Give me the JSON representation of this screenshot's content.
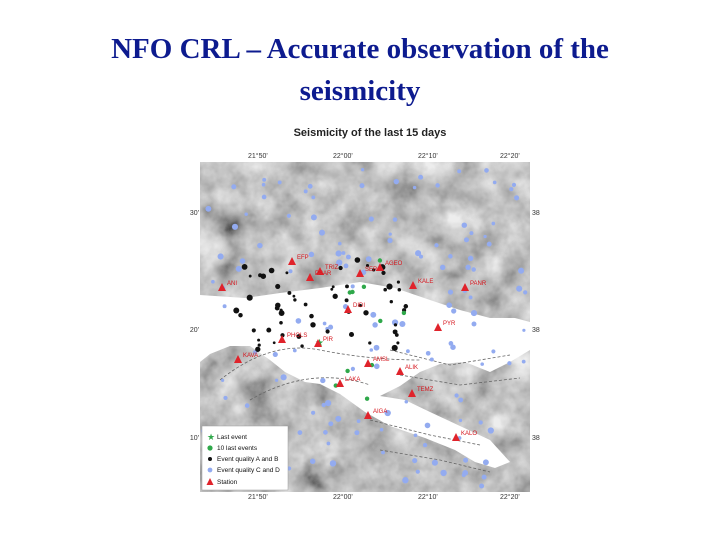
{
  "slide": {
    "title_line1": "NFO CRL – Accurate observation of the",
    "title_line2": "seismicity"
  },
  "map": {
    "caption": "Seismicity of the last 15 days",
    "lon_ticks": [
      "21°50'",
      "22°00'",
      "22°10'",
      "22°20'"
    ],
    "lat_ticks": [
      "38°30'",
      "38°20'",
      "38°10'"
    ],
    "stations": [
      "EFP",
      "TRIZ",
      "PSAR",
      "SERG",
      "AGEO",
      "DIDI",
      "KALE",
      "PANR",
      "PYR",
      "PHOLS",
      "PIR",
      "ANI",
      "ALIK",
      "LAKA",
      "TEMZ",
      "AMSL",
      "KAVA",
      "AIGA",
      "KALO"
    ],
    "legend": [
      {
        "label": "Last event",
        "symbol": "green-star-icon"
      },
      {
        "label": "10 last events",
        "symbol": "green-dot-icon"
      },
      {
        "label": "Event quality A and B",
        "symbol": "black-dot-icon"
      },
      {
        "label": "Event quality C and D",
        "symbol": "blue-dot-icon"
      },
      {
        "label": "Station",
        "symbol": "red-triangle-icon"
      }
    ],
    "colors": {
      "station": "#e0232b",
      "quality_ab": "#111111",
      "quality_cd": "#93abf0",
      "recent": "#2fa84a",
      "sea": "#ffffff",
      "relief": "#8f8f8f"
    }
  }
}
